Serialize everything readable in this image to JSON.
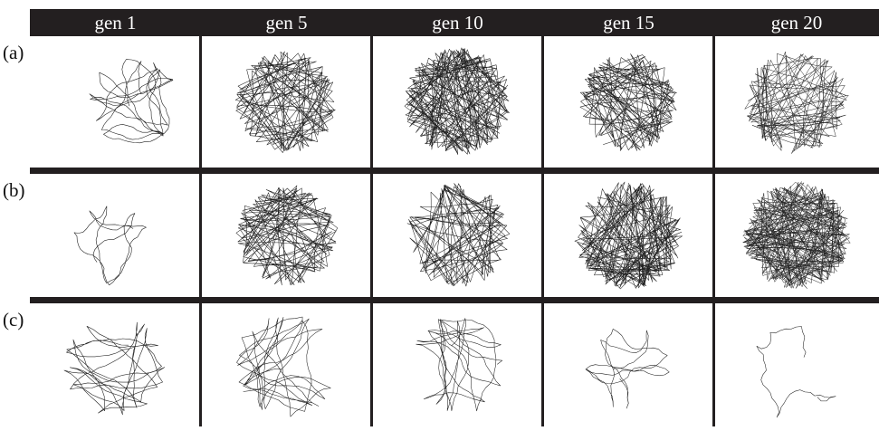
{
  "columns": [
    "gen 1",
    "gen 5",
    "gen 10",
    "gen 15",
    "gen 20"
  ],
  "rows": [
    "(a)",
    "(b)",
    "(c)"
  ]
}
